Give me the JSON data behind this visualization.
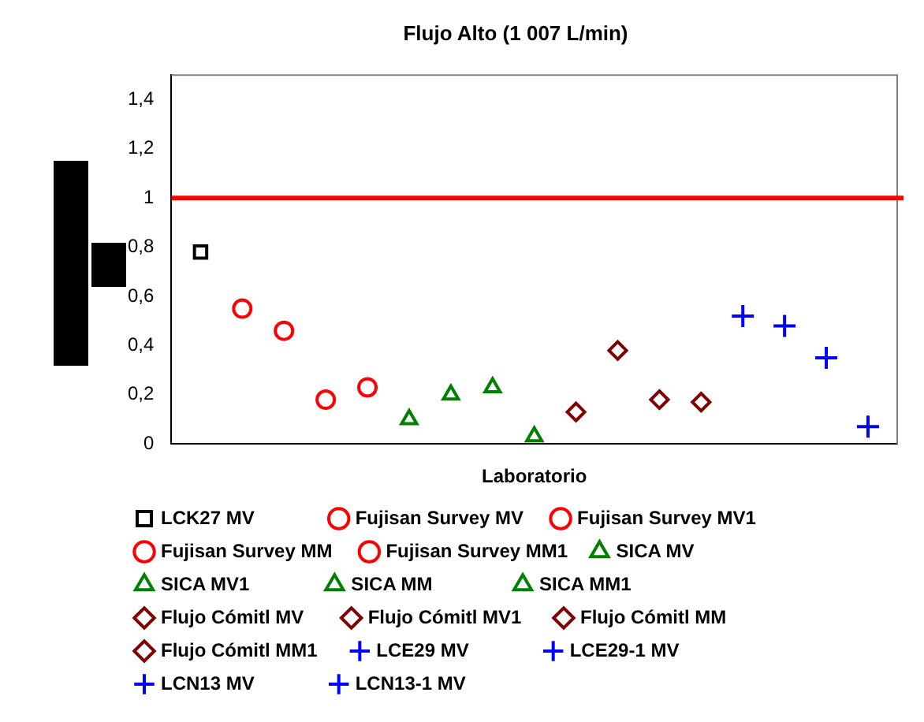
{
  "chart_data": {
    "type": "scatter",
    "title": "Flujo Alto (1 007 L/min)",
    "xlabel": "Laboratorio",
    "categories": [
      null,
      null,
      null,
      null,
      null,
      null,
      null,
      null,
      null,
      null,
      null,
      null,
      null,
      null,
      null,
      null,
      null
    ],
    "ylim": [
      0,
      1.5
    ],
    "yticks": [
      {
        "value": 0,
        "label": "0"
      },
      {
        "value": 0.2,
        "label": "0,2"
      },
      {
        "value": 0.4,
        "label": "0,4"
      },
      {
        "value": 0.6,
        "label": "0,6"
      },
      {
        "value": 0.8,
        "label": "0,8"
      },
      {
        "value": 1,
        "label": "1"
      },
      {
        "value": 1.2,
        "label": "1,2"
      },
      {
        "value": 1.4,
        "label": "1,4"
      }
    ],
    "tick_labels": "y",
    "grid": false,
    "legend": "bottom",
    "ref_lines": [
      {
        "axis": "y",
        "value": 1,
        "color": "#ff0000"
      }
    ],
    "series": [
      {
        "name": "LCK27 MV",
        "color": "#000000",
        "marker": "square",
        "values": [
          0.78,
          null,
          null,
          null,
          null,
          null,
          null,
          null,
          null,
          null,
          null,
          null,
          null,
          null,
          null,
          null,
          null
        ]
      },
      {
        "name": "Fujisan Survey MV",
        "color": "#ff0000",
        "marker": "circle",
        "values": [
          null,
          0.55,
          null,
          null,
          null,
          null,
          null,
          null,
          null,
          null,
          null,
          null,
          null,
          null,
          null,
          null,
          null
        ]
      },
      {
        "name": "Fujisan Survey MV1",
        "color": "#ff0000",
        "marker": "circle",
        "values": [
          null,
          null,
          0.46,
          null,
          null,
          null,
          null,
          null,
          null,
          null,
          null,
          null,
          null,
          null,
          null,
          null,
          null
        ]
      },
      {
        "name": "Fujisan Survey MM",
        "color": "#ff0000",
        "marker": "circle",
        "values": [
          null,
          null,
          null,
          0.18,
          null,
          null,
          null,
          null,
          null,
          null,
          null,
          null,
          null,
          null,
          null,
          null,
          null
        ]
      },
      {
        "name": "Fujisan Survey MM1",
        "color": "#ff0000",
        "marker": "circle",
        "values": [
          null,
          null,
          null,
          null,
          0.23,
          null,
          null,
          null,
          null,
          null,
          null,
          null,
          null,
          null,
          null,
          null,
          null
        ]
      },
      {
        "name": "SICA MV",
        "color": "#008000",
        "marker": "triangle",
        "values": [
          null,
          null,
          null,
          null,
          null,
          0.1,
          null,
          null,
          null,
          null,
          null,
          null,
          null,
          null,
          null,
          null,
          null
        ]
      },
      {
        "name": "SICA MV1",
        "color": "#008000",
        "marker": "triangle",
        "values": [
          null,
          null,
          null,
          null,
          null,
          null,
          0.2,
          null,
          null,
          null,
          null,
          null,
          null,
          null,
          null,
          null,
          null
        ]
      },
      {
        "name": "SICA MM",
        "color": "#008000",
        "marker": "triangle",
        "values": [
          null,
          null,
          null,
          null,
          null,
          null,
          null,
          0.23,
          null,
          null,
          null,
          null,
          null,
          null,
          null,
          null,
          null
        ]
      },
      {
        "name": "SICA MM1",
        "color": "#008000",
        "marker": "triangle",
        "values": [
          null,
          null,
          null,
          null,
          null,
          null,
          null,
          null,
          0.03,
          null,
          null,
          null,
          null,
          null,
          null,
          null,
          null
        ]
      },
      {
        "name": "Flujo Cómitl MV",
        "color": "#800000",
        "marker": "diamond",
        "values": [
          null,
          null,
          null,
          null,
          null,
          null,
          null,
          null,
          null,
          0.13,
          null,
          null,
          null,
          null,
          null,
          null,
          null
        ]
      },
      {
        "name": "Flujo Cómitl MV1",
        "color": "#800000",
        "marker": "diamond",
        "values": [
          null,
          null,
          null,
          null,
          null,
          null,
          null,
          null,
          null,
          null,
          0.38,
          null,
          null,
          null,
          null,
          null,
          null
        ]
      },
      {
        "name": "Flujo Cómitl MM",
        "color": "#800000",
        "marker": "diamond",
        "values": [
          null,
          null,
          null,
          null,
          null,
          null,
          null,
          null,
          null,
          null,
          null,
          0.18,
          null,
          null,
          null,
          null,
          null
        ]
      },
      {
        "name": "Flujo Cómitl MM1",
        "color": "#800000",
        "marker": "diamond",
        "values": [
          null,
          null,
          null,
          null,
          null,
          null,
          null,
          null,
          null,
          null,
          null,
          null,
          0.17,
          null,
          null,
          null,
          null
        ]
      },
      {
        "name": "LCE29 MV",
        "color": "#0000ff",
        "marker": "cross",
        "values": [
          null,
          null,
          null,
          null,
          null,
          null,
          null,
          null,
          null,
          null,
          null,
          null,
          null,
          0.52,
          null,
          null,
          null
        ]
      },
      {
        "name": "LCE29-1 MV",
        "color": "#0000ff",
        "marker": "cross",
        "values": [
          null,
          null,
          null,
          null,
          null,
          null,
          null,
          null,
          null,
          null,
          null,
          null,
          null,
          null,
          0.48,
          null,
          null
        ]
      },
      {
        "name": "LCN13 MV",
        "color": "#0000ff",
        "marker": "cross",
        "values": [
          null,
          null,
          null,
          null,
          null,
          null,
          null,
          null,
          null,
          null,
          null,
          null,
          null,
          null,
          null,
          0.35,
          null
        ]
      },
      {
        "name": "LCN13-1 MV",
        "color": "#0000ff",
        "marker": "cross",
        "values": [
          null,
          null,
          null,
          null,
          null,
          null,
          null,
          null,
          null,
          null,
          null,
          null,
          null,
          null,
          null,
          null,
          0.07
        ]
      }
    ]
  }
}
